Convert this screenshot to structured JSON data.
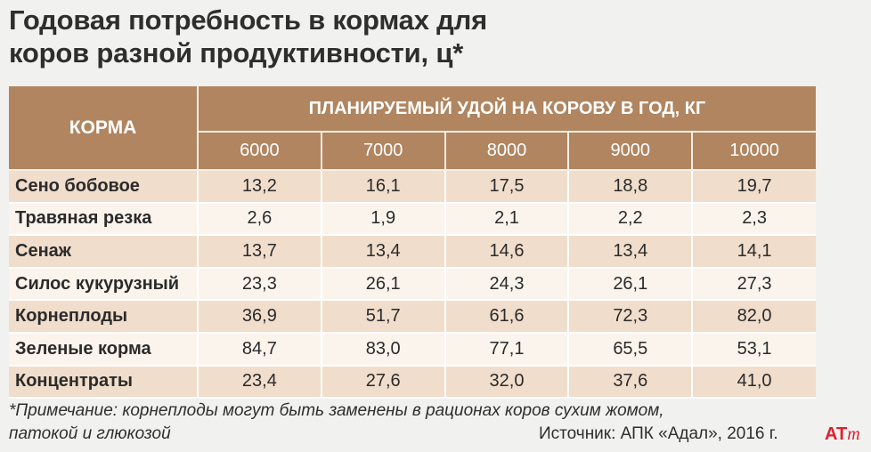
{
  "title": {
    "line1": "Годовая потребность в кормах для",
    "line2": "коров разной продуктивности, ц*"
  },
  "chart_data": {
    "type": "table",
    "row_header_label": "КОРМА",
    "column_group_label": "ПЛАНИРУЕМЫЙ УДОЙ НА КОРОВУ В ГОД, КГ",
    "columns": [
      "6000",
      "7000",
      "8000",
      "9000",
      "10000"
    ],
    "rows": [
      {
        "name": "Сено бобовое",
        "values": [
          "13,2",
          "16,1",
          "17,5",
          "18,8",
          "19,7"
        ]
      },
      {
        "name": "Травяная резка",
        "values": [
          "2,6",
          "1,9",
          "2,1",
          "2,2",
          "2,3"
        ]
      },
      {
        "name": "Сенаж",
        "values": [
          "13,7",
          "13,4",
          "14,6",
          "13,4",
          "14,1"
        ]
      },
      {
        "name": "Силос кукурузный",
        "values": [
          "23,3",
          "26,1",
          "24,3",
          "26,1",
          "27,3"
        ]
      },
      {
        "name": "Корнеплоды",
        "values": [
          "36,9",
          "51,7",
          "61,6",
          "72,3",
          "82,0"
        ]
      },
      {
        "name": "Зеленые корма",
        "values": [
          "84,7",
          "83,0",
          "77,1",
          "65,5",
          "53,1"
        ]
      },
      {
        "name": "Концентраты",
        "values": [
          "23,4",
          "27,6",
          "32,0",
          "37,6",
          "41,0"
        ]
      }
    ]
  },
  "footnote": {
    "line1": "*Примечание: корнеплоды могут быть заменены в рационах коров сухим жомом,",
    "line2": "патокой и глюкозой"
  },
  "source": "Источник: АПК «Адал», 2016 г.",
  "logo": {
    "part1": "AT",
    "part2": "m"
  },
  "colors": {
    "header": "#b08560",
    "row_odd": "#f0ddcb",
    "row_even": "#fbf4ec",
    "logo": "#e21e2d"
  }
}
